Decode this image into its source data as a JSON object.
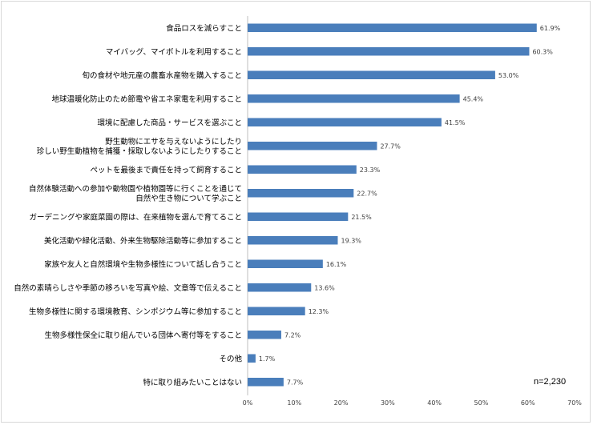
{
  "chart_data": {
    "type": "bar",
    "orientation": "horizontal",
    "categories": [
      [
        "食品ロスを減らすこと"
      ],
      [
        "マイバッグ、マイボトルを利用すること"
      ],
      [
        "旬の食材や地元産の農畜水産物を購入すること"
      ],
      [
        "地球温暖化防止のため節電や省エネ家電を利用すること"
      ],
      [
        "環境に配慮した商品・サービスを選ぶこと"
      ],
      [
        "野生動物にエサを与えないようにしたり",
        "珍しい野生動植物を捕獲・採取しないようにしたりすること"
      ],
      [
        "ペットを最後まで責任を持って飼育すること"
      ],
      [
        "自然体験活動への参加や動物園や植物園等に行くことを通じて",
        "自然や生き物について学ぶこと"
      ],
      [
        "ガーデニングや家庭菜園の際は、在来植物を選んで育てること"
      ],
      [
        "美化活動や緑化活動、外来生物駆除活動等に参加すること"
      ],
      [
        "家族や友人と自然環境や生物多様性について話し合うこと"
      ],
      [
        "自然の素晴らしさや季節の移ろいを写真や絵、文章等で伝えること"
      ],
      [
        "生物多様性に関する環境教育、シンポジウム等に参加すること"
      ],
      [
        "生物多様性保全に取り組んでいる団体へ寄付等をすること"
      ],
      [
        "その他"
      ],
      [
        "特に取り組みたいことはない"
      ]
    ],
    "values": [
      61.9,
      60.3,
      53.0,
      45.4,
      41.5,
      27.7,
      23.3,
      22.7,
      21.5,
      19.3,
      16.1,
      13.6,
      12.3,
      7.2,
      1.7,
      7.7
    ],
    "value_labels": [
      "61.9%",
      "60.3%",
      "53.0%",
      "45.4%",
      "41.5%",
      "27.7%",
      "23.3%",
      "22.7%",
      "21.5%",
      "19.3%",
      "16.1%",
      "13.6%",
      "12.3%",
      "7.2%",
      "1.7%",
      "7.7%"
    ],
    "xlim": [
      0,
      70
    ],
    "xticks": [
      "0%",
      "10%",
      "20%",
      "30%",
      "40%",
      "50%",
      "60%",
      "70%"
    ],
    "bar_color": "#4a7ebb",
    "grid": false,
    "note": "n=2,230"
  }
}
